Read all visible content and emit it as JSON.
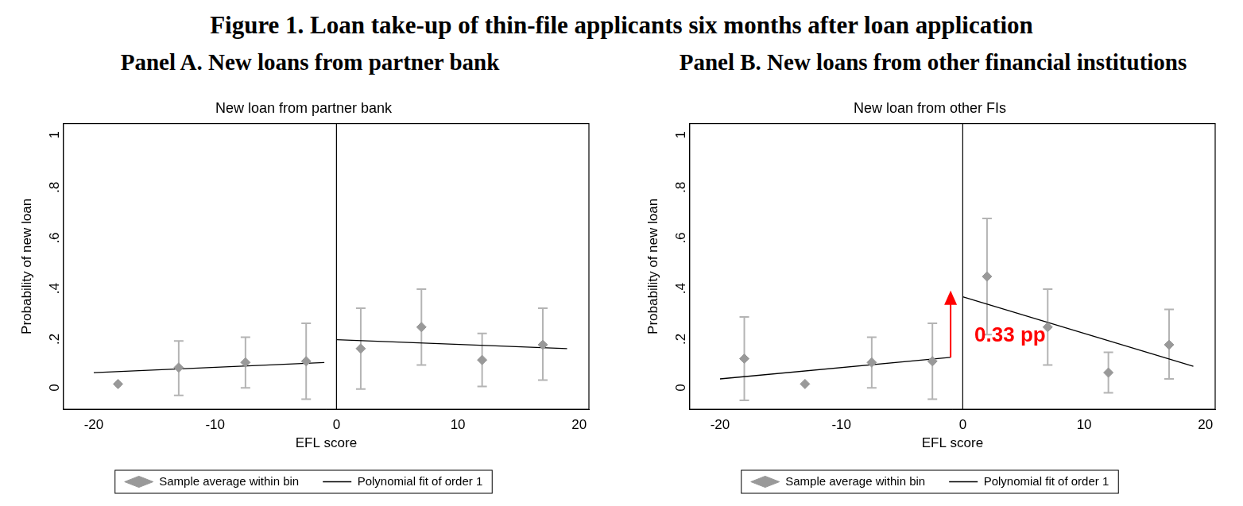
{
  "title": "Figure 1. Loan take-up of thin-file applicants six months after loan application",
  "chart_data": [
    {
      "type": "scatter",
      "panel_title": "Panel A. New loans from partner bank",
      "title": "New loan from partner bank",
      "x_label": "EFL score",
      "y_label": "Probability of new loan",
      "xlim": [
        -22.5,
        20.8
      ],
      "xticks": [
        -20,
        -10,
        0,
        10,
        20
      ],
      "ylim": [
        -0.1,
        1.03
      ],
      "yticks": [
        0,
        {
          "value": 0.2,
          "label": ".2"
        },
        {
          "value": 0.4,
          "label": ".4"
        },
        {
          "value": 0.6,
          "label": ".6"
        },
        {
          "value": 0.8,
          "label": ".8"
        },
        1
      ],
      "grid": false,
      "legend": "bottom",
      "threshold": 0,
      "series": [
        {
          "name": "Sample average within bin",
          "type": "scatter",
          "marker": "diamond",
          "color": "#999999",
          "x": [
            -18,
            -13,
            -7.5,
            -2.5,
            2,
            7,
            12,
            17
          ],
          "values": [
            0.0,
            0.065,
            0.085,
            0.09,
            0.14,
            0.225,
            0.095,
            0.155
          ],
          "error_low": [
            null,
            -0.045,
            -0.015,
            -0.06,
            -0.02,
            0.075,
            -0.01,
            0.015
          ],
          "error_high": [
            null,
            0.17,
            0.185,
            0.24,
            0.3,
            0.375,
            0.2,
            0.3
          ]
        },
        {
          "name": "Polynomial fit of order 1",
          "type": "line",
          "line_style": "solid",
          "color": "#000000",
          "segments": [
            {
              "x": [
                -20,
                -1
              ],
              "values": [
                0.045,
                0.085
              ]
            },
            {
              "x": [
                0,
                19
              ],
              "values": [
                0.175,
                0.14
              ]
            }
          ]
        }
      ]
    },
    {
      "type": "scatter",
      "panel_title": "Panel B. New loans from other financial institutions",
      "title": "New loan from other FIs",
      "x_label": "EFL score",
      "y_label": "Probability of new loan",
      "xlim": [
        -22.5,
        20.8
      ],
      "xticks": [
        -20,
        -10,
        0,
        10,
        20
      ],
      "ylim": [
        -0.1,
        1.03
      ],
      "yticks": [
        0,
        {
          "value": 0.2,
          "label": ".2"
        },
        {
          "value": 0.4,
          "label": ".4"
        },
        {
          "value": 0.6,
          "label": ".6"
        },
        {
          "value": 0.8,
          "label": ".8"
        },
        1
      ],
      "grid": false,
      "legend": "bottom",
      "threshold": 0,
      "annotation": {
        "text": "0.33 pp",
        "x": -1,
        "y_from": 0.105,
        "y_to": 0.37,
        "color": "#ff0000"
      },
      "series": [
        {
          "name": "Sample average within bin",
          "type": "scatter",
          "marker": "diamond",
          "color": "#999999",
          "x": [
            -18,
            -13,
            -7.5,
            -2.5,
            2,
            7,
            12,
            17
          ],
          "values": [
            0.1,
            0.0,
            0.085,
            0.09,
            0.425,
            0.225,
            0.045,
            0.155
          ],
          "error_low": [
            -0.065,
            null,
            -0.015,
            -0.06,
            0.195,
            0.075,
            -0.035,
            0.02
          ],
          "error_high": [
            0.265,
            null,
            0.185,
            0.24,
            0.655,
            0.375,
            0.125,
            0.295
          ]
        },
        {
          "name": "Polynomial fit of order 1",
          "type": "line",
          "line_style": "solid",
          "color": "#000000",
          "segments": [
            {
              "x": [
                -20,
                -1
              ],
              "values": [
                0.02,
                0.105
              ]
            },
            {
              "x": [
                0,
                19
              ],
              "values": [
                0.345,
                0.07
              ]
            }
          ]
        }
      ]
    }
  ]
}
